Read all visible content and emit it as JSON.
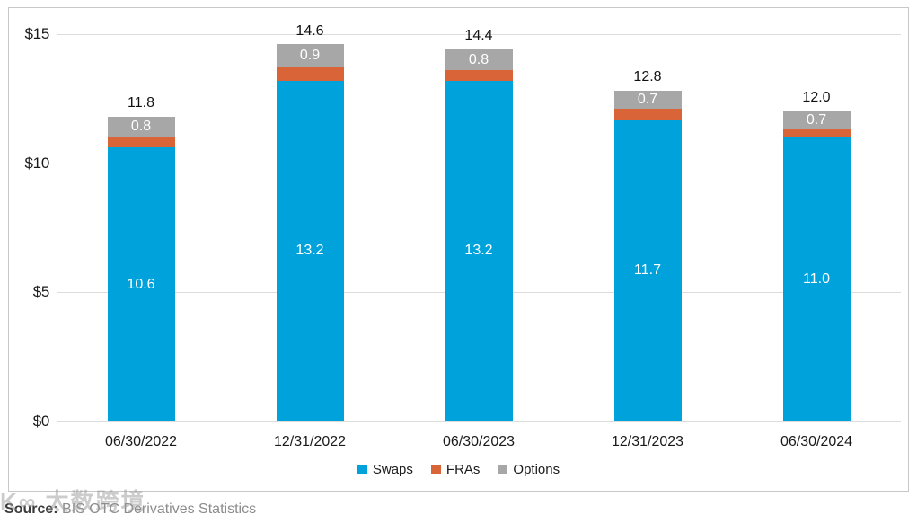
{
  "chart_data": {
    "type": "bar",
    "stacked": true,
    "title": "",
    "xlabel": "",
    "ylabel": "",
    "ylim": [
      0,
      15
    ],
    "grid": true,
    "legend_position": "bottom",
    "categories": [
      "06/30/2022",
      "12/31/2022",
      "06/30/2023",
      "12/31/2023",
      "06/30/2024"
    ],
    "series": [
      {
        "name": "Swaps",
        "color": "#00A2DC",
        "values": [
          10.6,
          13.2,
          13.2,
          11.7,
          11.0
        ],
        "value_labels": [
          "10.6",
          "13.2",
          "13.2",
          "11.7",
          "11.0"
        ]
      },
      {
        "name": "FRAs",
        "color": "#D96438",
        "values": [
          0.4,
          0.5,
          0.4,
          0.4,
          0.3
        ],
        "value_labels": [
          "",
          "",
          "",
          "",
          ""
        ]
      },
      {
        "name": "Options",
        "color": "#A7A7A7",
        "values": [
          0.8,
          0.9,
          0.8,
          0.7,
          0.7
        ],
        "value_labels": [
          "0.8",
          "0.9",
          "0.8",
          "0.7",
          "0.7"
        ]
      }
    ],
    "totals": [
      "11.8",
      "14.6",
      "14.4",
      "12.8",
      "12.0"
    ],
    "y_ticks": [
      {
        "value": 15,
        "label": "$15"
      },
      {
        "value": 10,
        "label": "$10"
      },
      {
        "value": 5,
        "label": "$5"
      },
      {
        "value": 0,
        "label": "$0"
      }
    ]
  },
  "footer": {
    "source_label": "Source:",
    "source_text": " BIS OTC Derivatives Statistics"
  },
  "watermark": {
    "text": "K∞ 太数跨境"
  }
}
